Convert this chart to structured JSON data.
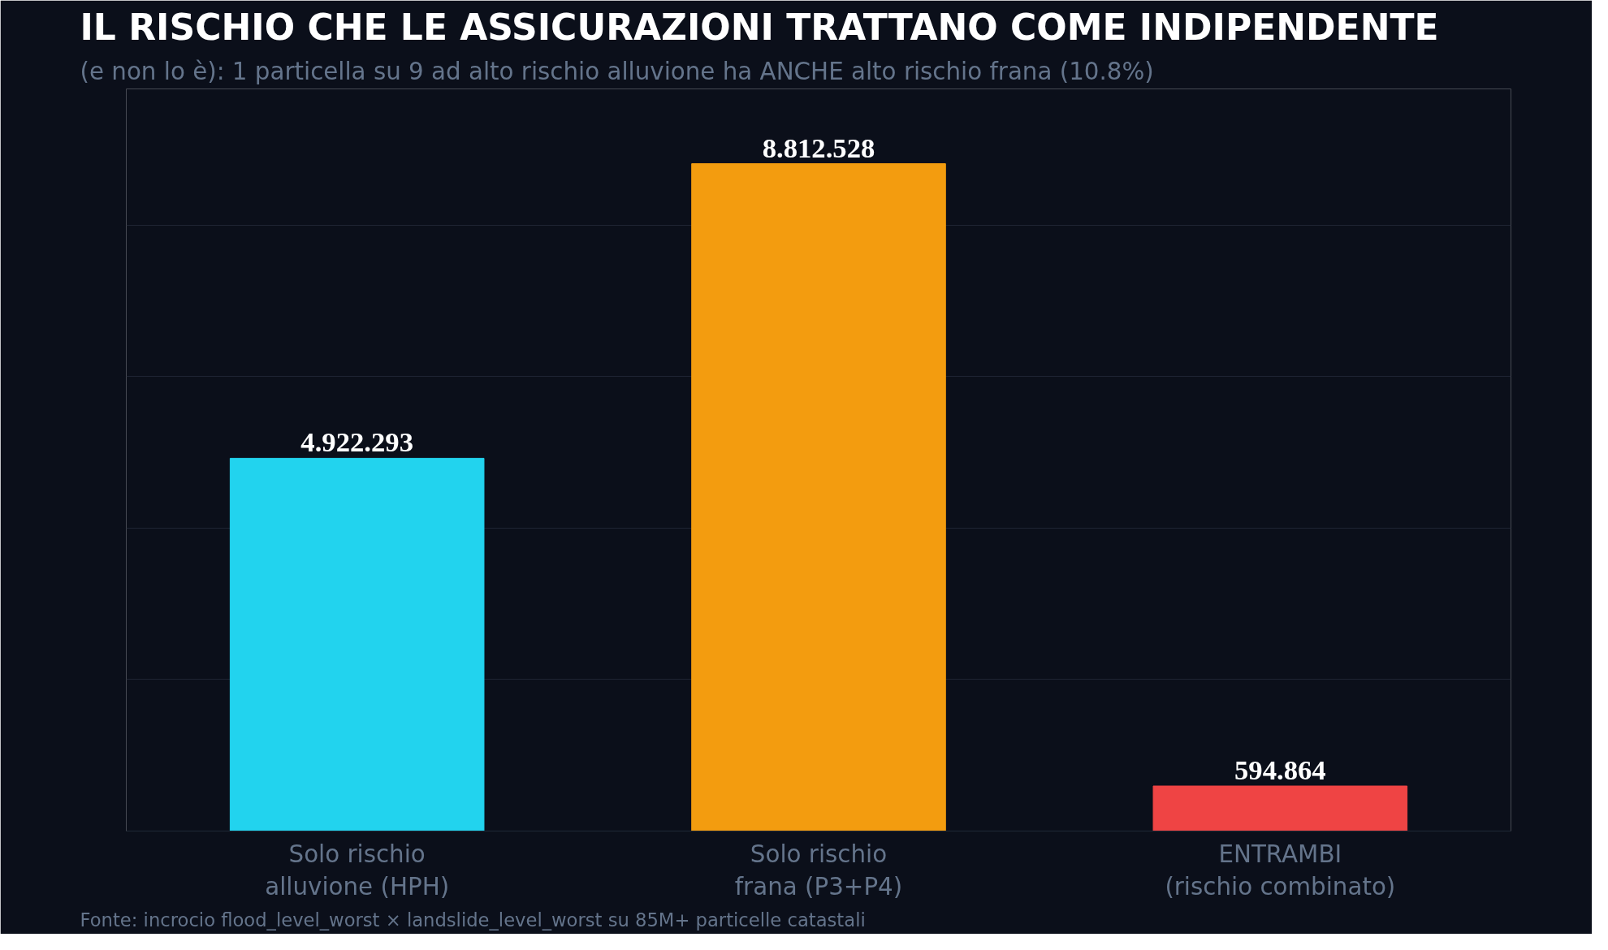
{
  "chart_data": {
    "type": "bar",
    "title": "IL RISCHIO CHE LE ASSICURAZIONI TRATTANO COME INDIPENDENTE",
    "subtitle": "(e non lo è): 1 particella su 9 ad alto rischio alluvione ha ANCHE alto rischio frana (10.8%)",
    "categories": [
      "Solo rischio\nalluvione (HPH)",
      "Solo rischio\nfrana (P3+P4)",
      "ENTRAMBI\n(rischio combinato)"
    ],
    "values": [
      4922293,
      8812528,
      594864
    ],
    "colors": [
      "#22d3ee",
      "#f39c0f",
      "#ef4444"
    ],
    "value_labels": [
      "4.922.293",
      "8.812.528",
      "594.864"
    ],
    "ylim": [
      0,
      9800000
    ],
    "yticks": [
      {
        "value": 0,
        "label": null
      },
      {
        "value": 2000000,
        "label": null
      },
      {
        "value": 4000000,
        "label": null
      },
      {
        "value": 6000000,
        "label": null
      },
      {
        "value": 8000000,
        "label": null
      }
    ],
    "grid": "y",
    "tick_labels": "x",
    "annotations": [
      "Fonte: incrocio flood_level_worst × landslide_level_worst su 85M+ particelle catastali"
    ]
  }
}
